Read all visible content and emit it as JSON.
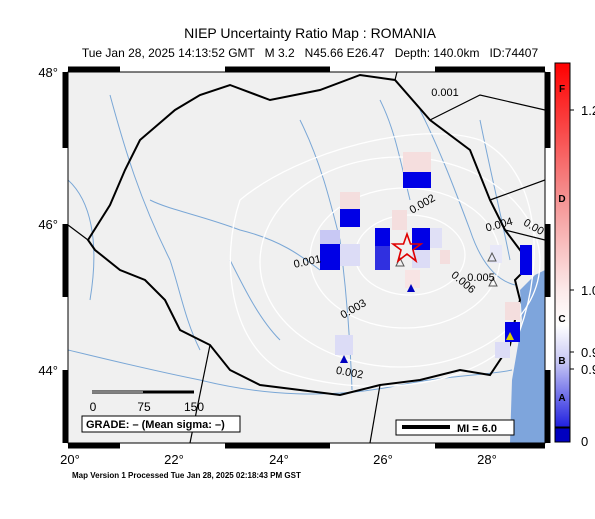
{
  "header": {
    "title": "NIEP Uncertainty Ratio Map : ROMANIA",
    "subtitle": "Tue Jan 28, 2025 14:13:52 GMT   M 3.2   N45.66 E26.47   Depth: 140.0km   ID:74407"
  },
  "map": {
    "lat_labels": [
      "48°",
      "46°",
      "44°"
    ],
    "lon_labels": [
      "20°",
      "22°",
      "24°",
      "26°",
      "28°"
    ],
    "contour_labels": [
      "0.001",
      "0.002",
      "0.004",
      "0.00",
      "0.005",
      "0.006",
      "0.001",
      "0.003",
      "0.002"
    ],
    "scale_labels": [
      "0",
      "75",
      "150"
    ],
    "grade": "GRADE: – (Mean sigma: –)",
    "mi": "MI = 6.0"
  },
  "colorbar": {
    "grades": [
      "F",
      "D",
      "C",
      "B",
      "A"
    ],
    "labels": [
      "1.2",
      "1.0",
      "0.9",
      "0.9",
      "0"
    ]
  },
  "footer": "Map Version 1 Processed Tue Jan 28, 2025 02:18:43 PM GST"
}
